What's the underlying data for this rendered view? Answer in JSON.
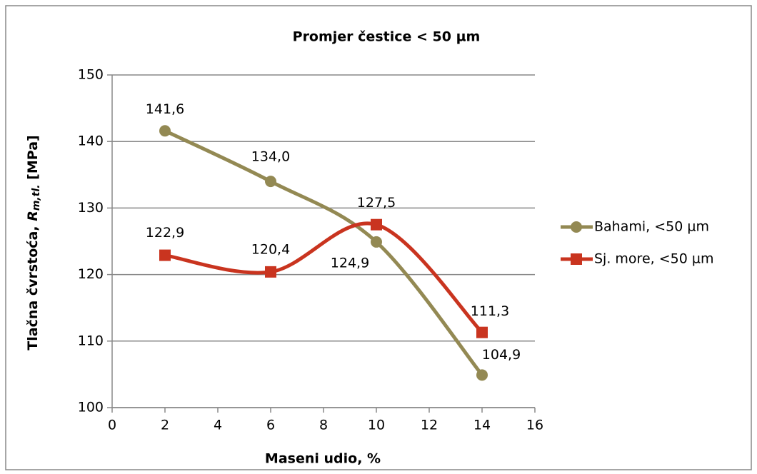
{
  "chart_data": {
    "type": "line",
    "title": "Promjer čestice < 50 µm",
    "x_label": "Maseni udio, %",
    "y_label": {
      "text": "Tlačna čvrstoća, ",
      "symbol": "R",
      "subscript": "m,tl.",
      "unit": "[MPa]"
    },
    "x": [
      2,
      6,
      10,
      14
    ],
    "series": [
      {
        "name": "Bahami, <50 µm",
        "color": "#938953",
        "marker": "circle",
        "smooth": true,
        "values": [
          141.6,
          134.0,
          124.9,
          104.9
        ],
        "value_labels": [
          "141,6",
          "134,0",
          "124,9",
          "104,9"
        ]
      },
      {
        "name": "Sj. more, <50 µm",
        "color": "#c9341f",
        "marker": "square",
        "smooth": true,
        "values": [
          122.9,
          120.4,
          127.5,
          111.3
        ],
        "value_labels": [
          "122,9",
          "120,4",
          "127,5",
          "111,3"
        ]
      }
    ],
    "xlim": [
      0,
      16
    ],
    "xticks": [
      0,
      2,
      4,
      6,
      8,
      10,
      12,
      14,
      16
    ],
    "ylim": [
      100,
      150
    ],
    "yticks": [
      100,
      110,
      120,
      130,
      140,
      150
    ],
    "grid": true,
    "legend": "right"
  }
}
